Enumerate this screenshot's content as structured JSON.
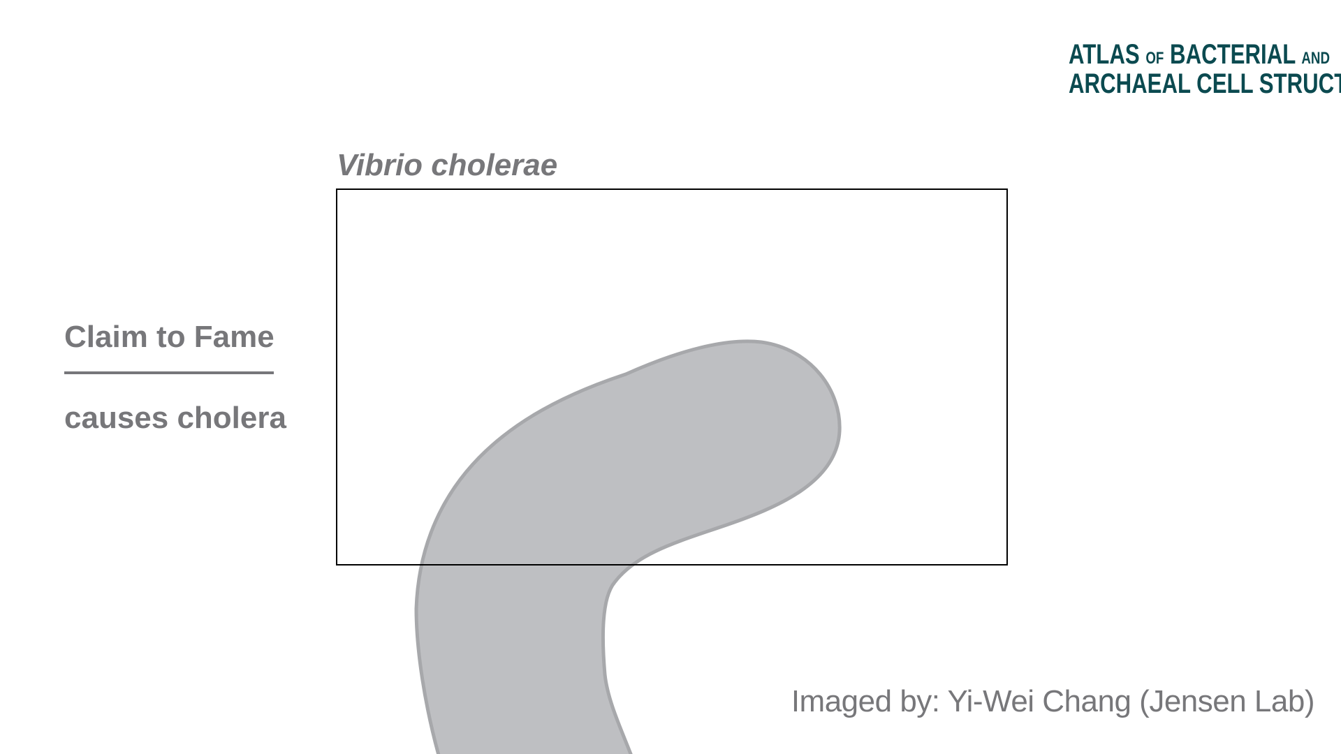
{
  "logo": {
    "line1_a": "Atlas",
    "line1_of": "of",
    "line1_b": "Bacterial",
    "line1_and": "and",
    "line2": "Archaeal Cell Structure"
  },
  "organism": {
    "name": "Vibrio cholerae"
  },
  "claim": {
    "heading": "Claim to Fame",
    "text": "causes cholera"
  },
  "credit": {
    "text": "Imaged by: Yi-Wei Chang (Jensen Lab)"
  },
  "colors": {
    "cell_fill": "#bebfc2",
    "cell_stroke": "#a7a8ab",
    "text_gray": "#77777a",
    "logo_teal": "#0b4a50",
    "frame": "#000000"
  }
}
